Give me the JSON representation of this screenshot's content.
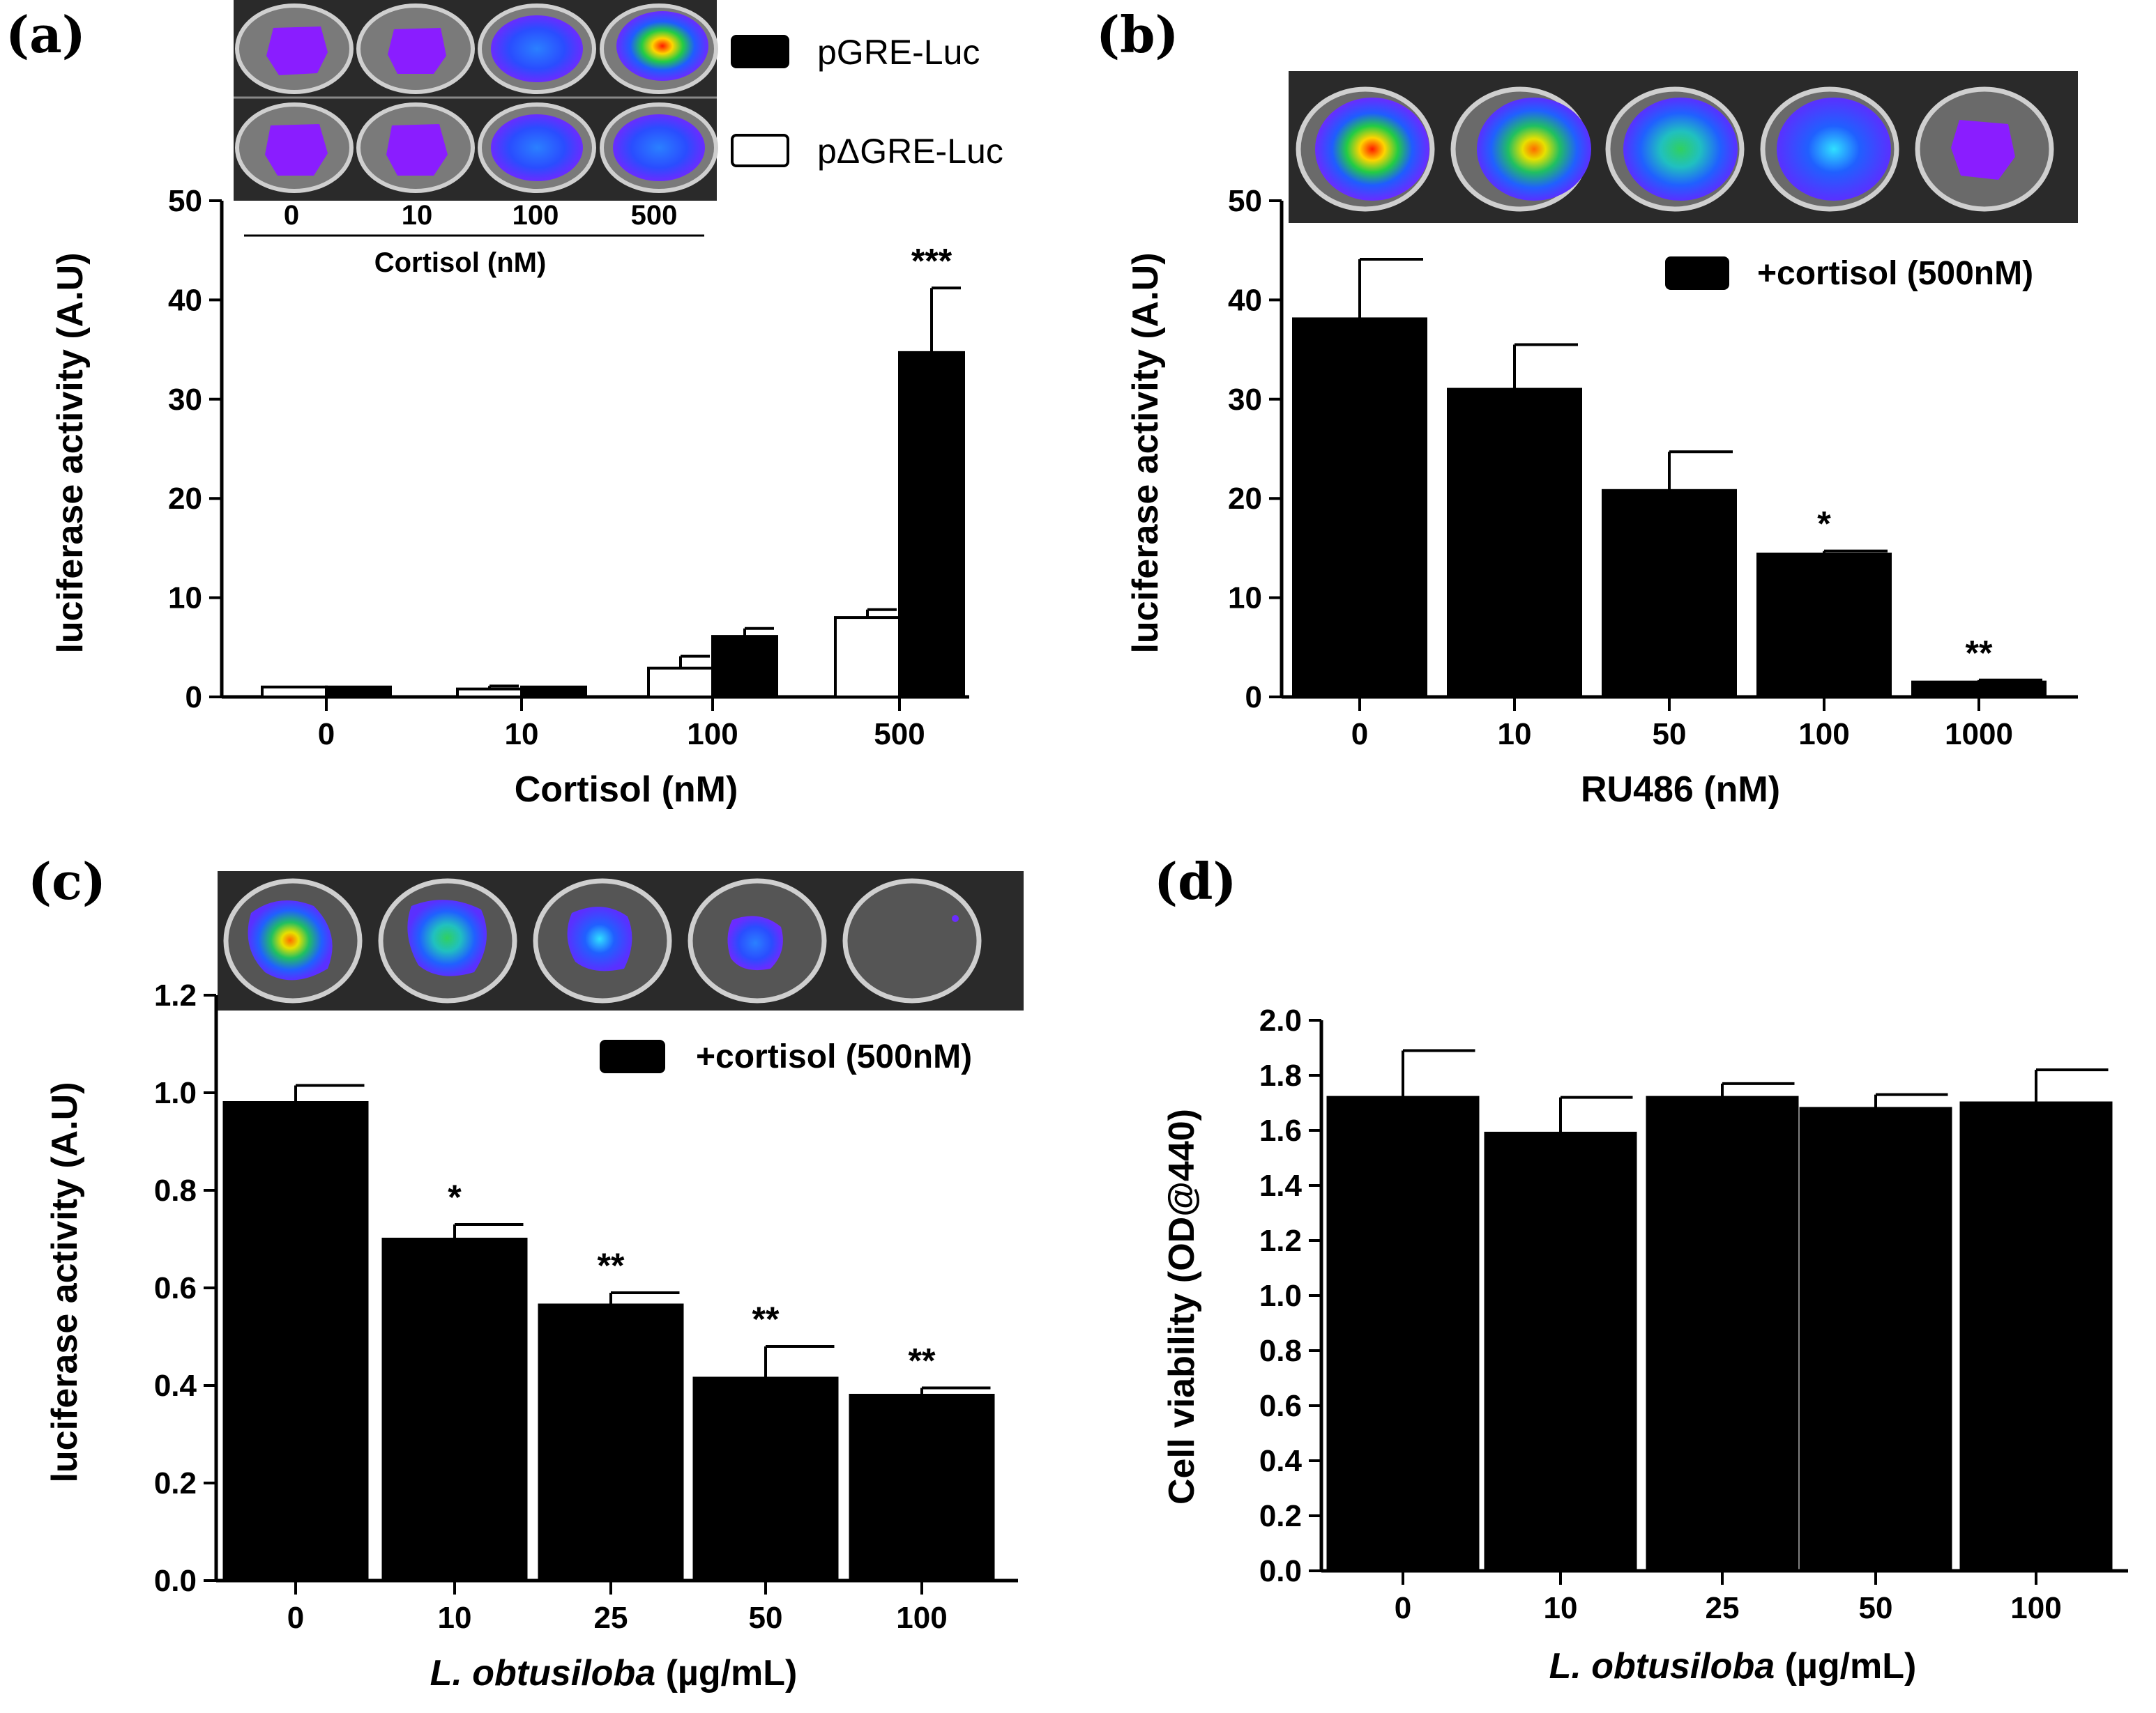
{
  "colors": {
    "bar_black": "#000000",
    "bar_white": "#ffffff",
    "axis": "#000000",
    "inset_bg": "#2a2a2a"
  },
  "chart_data": [
    {
      "panel": "(a)",
      "type": "bar",
      "categories": [
        "0",
        "10",
        "100",
        "500"
      ],
      "series": [
        {
          "name": "pΔGRE-Luc",
          "fill": "white",
          "values": [
            1.0,
            0.8,
            2.9,
            8.0
          ],
          "errors": [
            0.0,
            0.3,
            1.2,
            0.8
          ],
          "stars": [
            "",
            "",
            "",
            ""
          ]
        },
        {
          "name": "pGRE-Luc",
          "fill": "black",
          "values": [
            1.0,
            1.0,
            6.1,
            34.7
          ],
          "errors": [
            0.0,
            0.0,
            0.8,
            6.5
          ],
          "stars": [
            "",
            "",
            "",
            "***"
          ]
        }
      ],
      "ylim": [
        0,
        50
      ],
      "yticks": [
        "0",
        "10",
        "20",
        "30",
        "40",
        "50"
      ],
      "ylabel": "luciferase activity (A.U)",
      "xlabel": "Cortisol (nM)",
      "inset": {
        "labels": [
          "0",
          "10",
          "100",
          "500"
        ],
        "title": "Cortisol (nM)"
      }
    },
    {
      "panel": "(b)",
      "type": "bar",
      "categories": [
        "0",
        "10",
        "50",
        "100",
        "1000"
      ],
      "series": [
        {
          "name": "+cortisol (500nM)",
          "fill": "black",
          "values": [
            38.1,
            31.0,
            20.8,
            14.4,
            1.5
          ],
          "errors": [
            6.0,
            4.5,
            3.9,
            0.3,
            0.2
          ],
          "stars": [
            "",
            "",
            "",
            "*",
            "**"
          ]
        }
      ],
      "ylim": [
        0,
        50
      ],
      "yticks": [
        "0",
        "10",
        "20",
        "30",
        "40",
        "50"
      ],
      "ylabel": "luciferase activity (A.U)",
      "xlabel": "RU486  (nM)"
    },
    {
      "panel": "(c)",
      "type": "bar",
      "categories": [
        "0",
        "10",
        "25",
        "50",
        "100"
      ],
      "series": [
        {
          "name": "+cortisol (500nM)",
          "fill": "black",
          "values": [
            0.98,
            0.7,
            0.565,
            0.415,
            0.38
          ],
          "errors": [
            0.035,
            0.03,
            0.025,
            0.065,
            0.015
          ],
          "stars": [
            "",
            "*",
            "**",
            "**",
            "**"
          ]
        }
      ],
      "ylim": [
        0,
        1.2
      ],
      "yticks": [
        "0.0",
        "0.2",
        "0.4",
        "0.6",
        "0.8",
        "1.0",
        "1.2"
      ],
      "ylabel": "luciferase activity (A.U)",
      "xlabel_italic": "L. obtusiloba",
      "xlabel_rest": " (µg/mL)"
    },
    {
      "panel": "(d)",
      "type": "bar",
      "categories": [
        "0",
        "10",
        "25",
        "50",
        "100"
      ],
      "series": [
        {
          "name": "Cell viability",
          "fill": "black",
          "values": [
            1.72,
            1.59,
            1.72,
            1.68,
            1.7
          ],
          "errors": [
            0.17,
            0.13,
            0.05,
            0.05,
            0.12
          ],
          "stars": [
            "",
            "",
            "",
            "",
            ""
          ]
        }
      ],
      "ylim": [
        0,
        2.0
      ],
      "yticks": [
        "0.0",
        "0.2",
        "0.4",
        "0.6",
        "0.8",
        "1.0",
        "1.2",
        "1.4",
        "1.6",
        "1.8",
        "2.0"
      ],
      "ylabel": "Cell viability (OD@440)",
      "xlabel_italic": "L. obtusiloba",
      "xlabel_rest": " (µg/mL)"
    }
  ]
}
